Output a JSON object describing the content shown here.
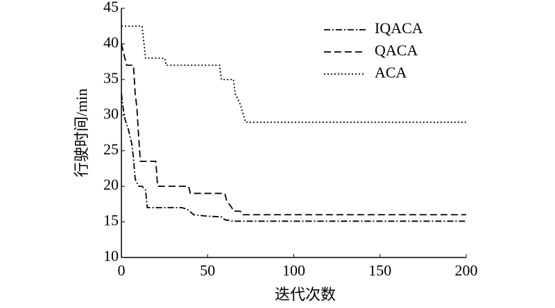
{
  "chart_data": {
    "type": "line",
    "xlabel": "迭代次数",
    "ylabel": "行驶时间/min",
    "xlim": [
      0,
      200
    ],
    "xticks": [
      0,
      50,
      100,
      150,
      200
    ],
    "ylim": [
      10,
      45
    ],
    "yticks": [
      10,
      15,
      20,
      25,
      30,
      35,
      40,
      45
    ],
    "legend": "upper right",
    "series": [
      {
        "name": "IQACA",
        "color": "#000000",
        "dash": "dashdot",
        "x": [
          0,
          1,
          2,
          4,
          6,
          7,
          8,
          10,
          12,
          14,
          15,
          16,
          35,
          38,
          42,
          50,
          58,
          60,
          65,
          200
        ],
        "values": [
          33,
          31,
          29.5,
          28,
          26,
          24,
          21,
          20,
          20,
          19.5,
          17,
          17,
          17,
          16.8,
          16,
          15.8,
          15.7,
          15.3,
          15.1,
          15.1
        ]
      },
      {
        "name": "QACA",
        "color": "#000000",
        "dash": "dashed",
        "x": [
          0,
          3,
          7,
          8,
          9,
          10,
          11,
          20,
          21,
          39,
          40,
          60,
          61,
          64,
          65,
          69,
          70,
          200
        ],
        "values": [
          40,
          37,
          37,
          33,
          31,
          27,
          23.5,
          23.5,
          20,
          20,
          19,
          19,
          18,
          17,
          16.5,
          16.5,
          16,
          16
        ]
      },
      {
        "name": "ACA",
        "color": "#000000",
        "dash": "dotted",
        "x": [
          0,
          12,
          14,
          25,
          26,
          57,
          58,
          65,
          66,
          68,
          69,
          72,
          200
        ],
        "values": [
          42.5,
          42.5,
          38,
          38,
          37,
          37,
          35,
          35,
          33,
          32,
          31.5,
          29,
          29
        ]
      }
    ]
  }
}
